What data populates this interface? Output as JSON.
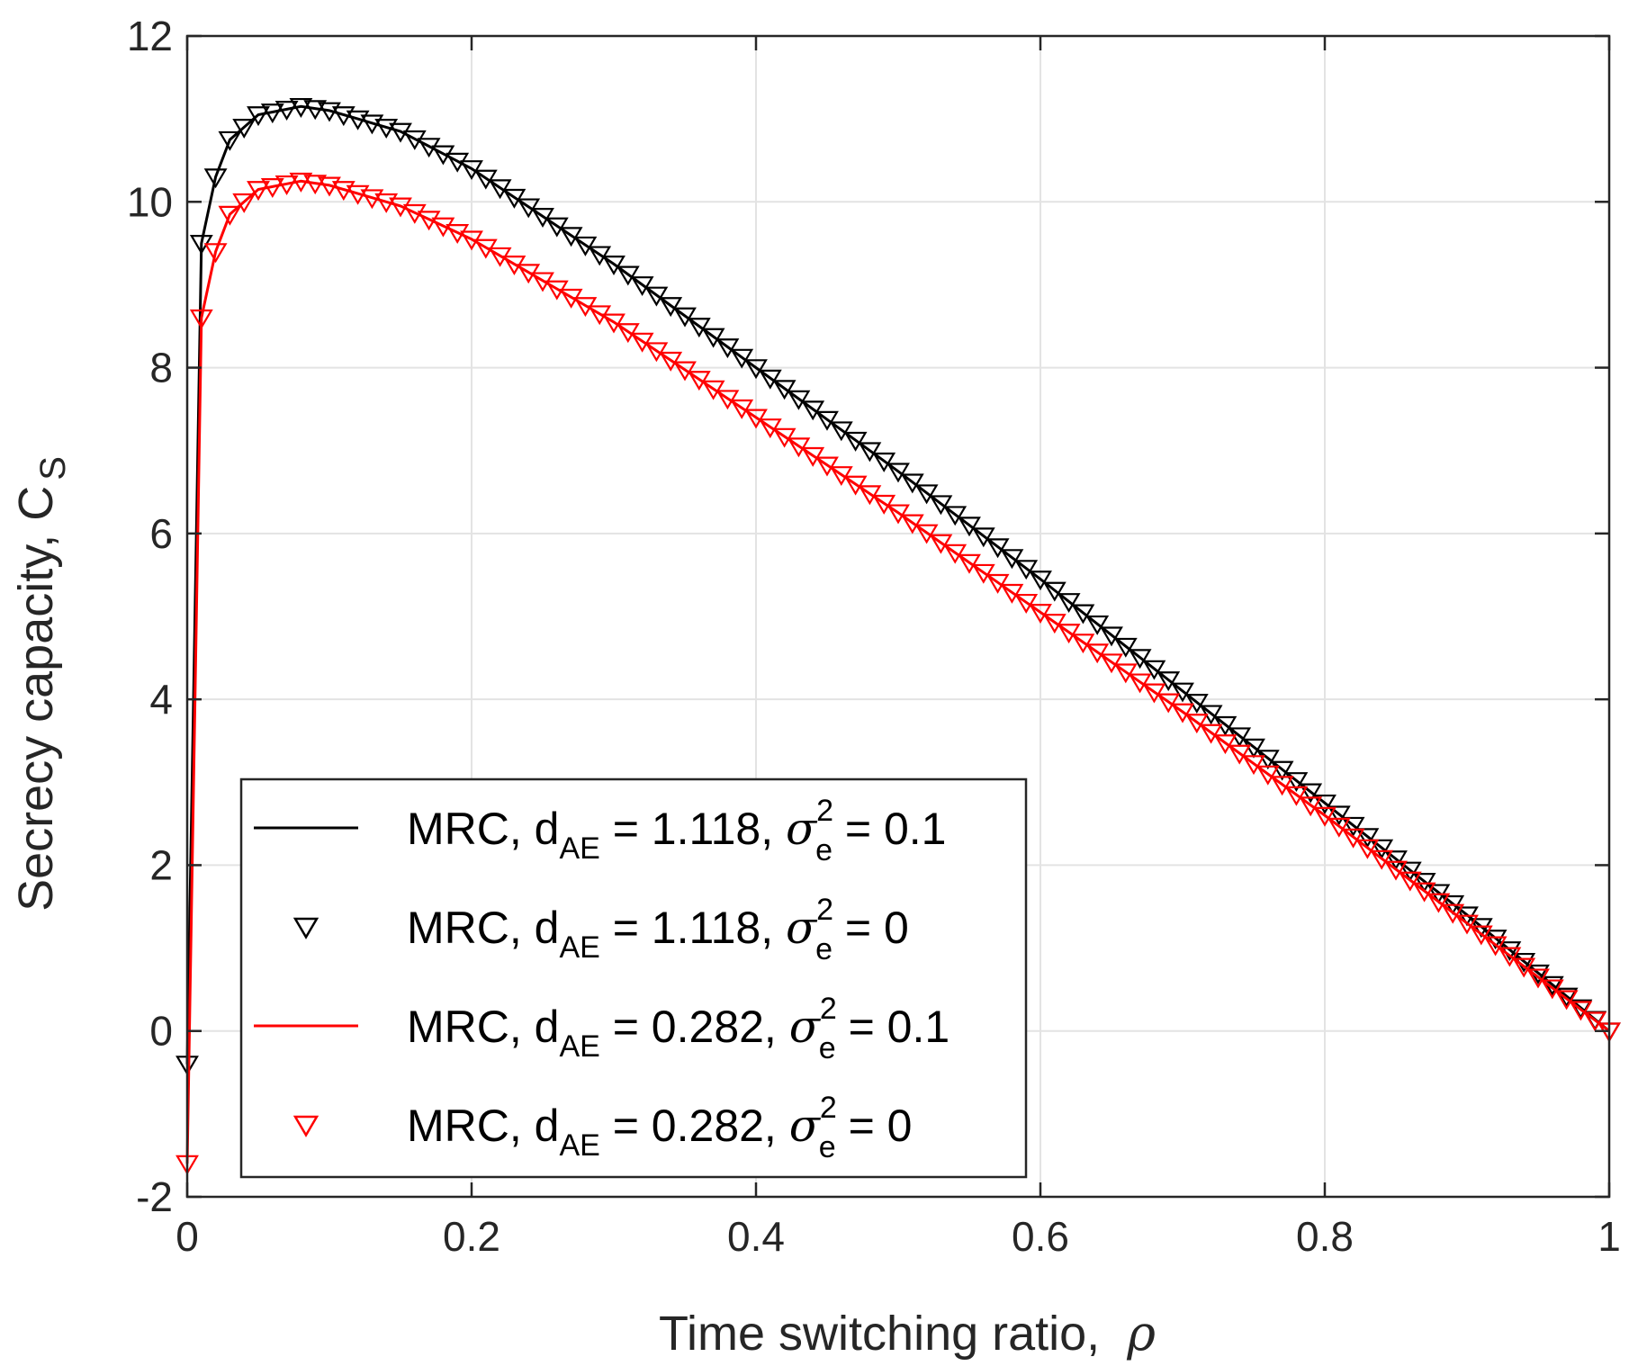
{
  "chart_data": {
    "type": "line",
    "xlabel": "Time switching ratio,",
    "xlabel_symbol": "ρ",
    "ylabel": "Secrecy capacity, C",
    "ylabel_sub": "S",
    "xlim": [
      0,
      1
    ],
    "ylim": [
      -2,
      12
    ],
    "xticks": [
      0,
      0.2,
      0.4,
      0.6,
      0.8,
      1
    ],
    "xtick_labels": [
      "0",
      "0.2",
      "0.4",
      "0.6",
      "0.8",
      "1"
    ],
    "yticks": [
      -2,
      0,
      2,
      4,
      6,
      8,
      10,
      12
    ],
    "ytick_labels": [
      "-2",
      "0",
      "2",
      "4",
      "6",
      "8",
      "10",
      "12"
    ],
    "grid": true,
    "legend_position": "bottom-left",
    "x": [
      0,
      0.01,
      0.02,
      0.03,
      0.05,
      0.08,
      0.1,
      0.15,
      0.2,
      0.3,
      0.4,
      0.5,
      0.6,
      0.7,
      0.8,
      0.9,
      1.0
    ],
    "series": [
      {
        "name": "MRC, d_AE = 1.118, σ_e^2 = 0.1",
        "style": "line",
        "color": "#000000",
        "values": [
          -0.4,
          9.5,
          10.3,
          10.75,
          11.05,
          11.15,
          11.1,
          10.85,
          10.4,
          9.25,
          8.0,
          6.75,
          5.45,
          4.1,
          2.75,
          1.4,
          0.0
        ]
      },
      {
        "name": "MRC, d_AE = 1.118, σ_e^2 = 0",
        "style": "markers",
        "marker": "triangle-down",
        "color": "#000000",
        "values": [
          -0.4,
          9.5,
          10.3,
          10.75,
          11.05,
          11.15,
          11.1,
          10.85,
          10.4,
          9.25,
          8.0,
          6.75,
          5.45,
          4.1,
          2.75,
          1.4,
          0.0
        ]
      },
      {
        "name": "MRC, d_AE = 0.282, σ_e^2 = 0.1",
        "style": "line",
        "color": "#ff0000",
        "values": [
          -1.6,
          8.6,
          9.4,
          9.85,
          10.15,
          10.25,
          10.2,
          9.95,
          9.55,
          8.55,
          7.4,
          6.25,
          5.05,
          3.85,
          2.6,
          1.3,
          0.0
        ]
      },
      {
        "name": "MRC, d_AE = 0.282, σ_e^2 = 0",
        "style": "markers",
        "marker": "triangle-down",
        "color": "#ff0000",
        "values": [
          -1.6,
          8.6,
          9.4,
          9.85,
          10.15,
          10.25,
          10.2,
          9.95,
          9.55,
          8.55,
          7.4,
          6.25,
          5.05,
          3.85,
          2.6,
          1.3,
          0.0
        ]
      }
    ]
  },
  "legend": [
    {
      "prefix": "MRC, d",
      "sub": "AE",
      "mid": " = 1.118, ",
      "sym": "σ",
      "sup": "2",
      "sub2": "e",
      "suffix": " = 0.1",
      "style": "line",
      "color": "#000000"
    },
    {
      "prefix": "MRC, d",
      "sub": "AE",
      "mid": " = 1.118, ",
      "sym": "σ",
      "sup": "2",
      "sub2": "e",
      "suffix": " = 0",
      "style": "markers",
      "color": "#000000"
    },
    {
      "prefix": "MRC, d",
      "sub": "AE",
      "mid": " = 0.282, ",
      "sym": "σ",
      "sup": "2",
      "sub2": "e",
      "suffix": " = 0.1",
      "style": "line",
      "color": "#ff0000"
    },
    {
      "prefix": "MRC, d",
      "sub": "AE",
      "mid": " = 0.282, ",
      "sym": "σ",
      "sup": "2",
      "sub2": "e",
      "suffix": " = 0",
      "style": "markers",
      "color": "#ff0000"
    }
  ]
}
